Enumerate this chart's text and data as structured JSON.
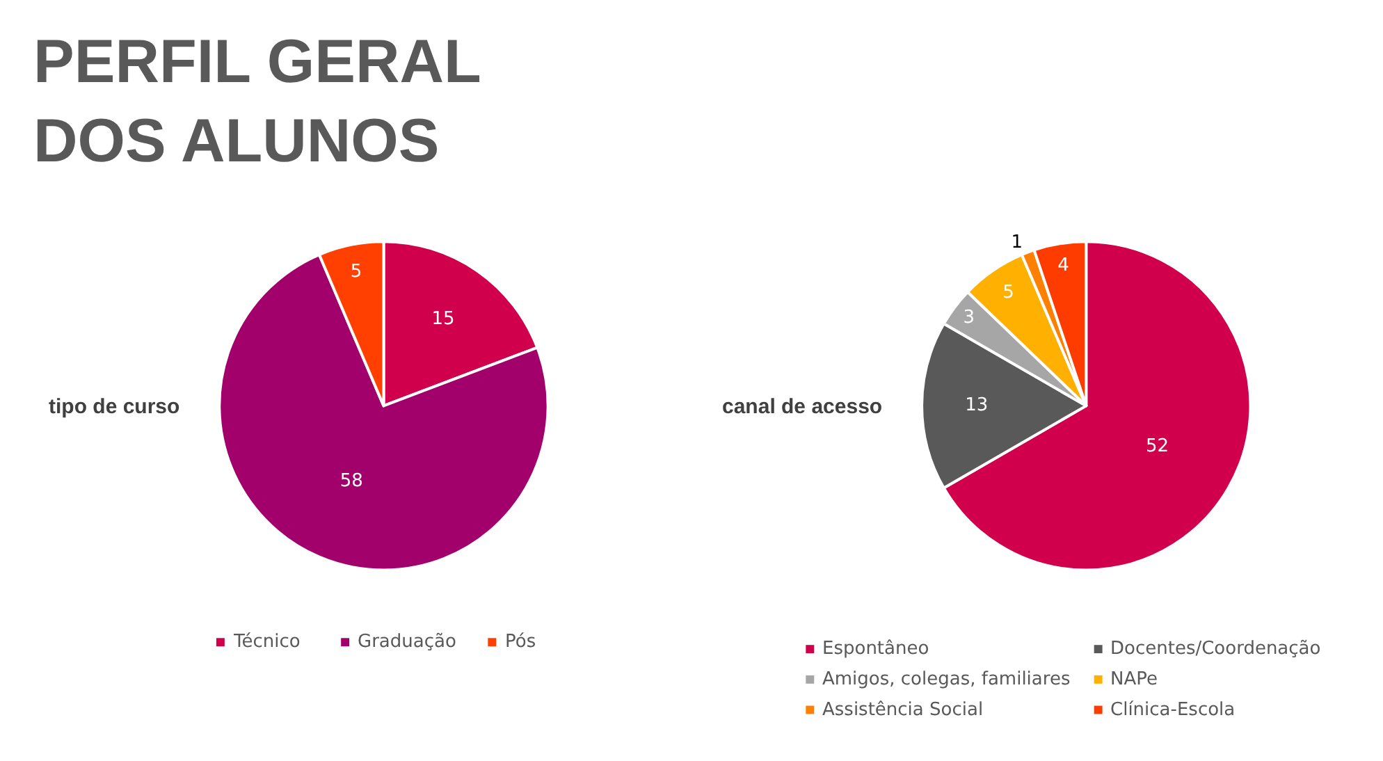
{
  "chart_data": [
    {
      "type": "pie",
      "title": "tipo de curso",
      "annotations": [
        "PERFIL GERAL\nDOS ALUNOS"
      ],
      "categories": [
        "Técnico",
        "Graduação",
        "Pós"
      ],
      "values": [
        15,
        58,
        5
      ],
      "colors": [
        "#d0004c",
        "#a2006a",
        "#ff4000"
      ],
      "data_labels": true,
      "legend": "bottom"
    },
    {
      "type": "pie",
      "title": "canal de acesso",
      "categories": [
        "Espontâneo",
        "Docentes/Coordenação",
        "Amigos, colegas, familiares",
        "NAPe",
        "Assistência Social",
        "Clínica-Escola"
      ],
      "values": [
        52,
        13,
        3,
        5,
        1,
        4
      ],
      "colors": [
        "#d0004c",
        "#595959",
        "#a6a6a6",
        "#ffb000",
        "#ff8000",
        "#ff3c00"
      ],
      "data_labels": true,
      "legend": "bottom"
    }
  ]
}
